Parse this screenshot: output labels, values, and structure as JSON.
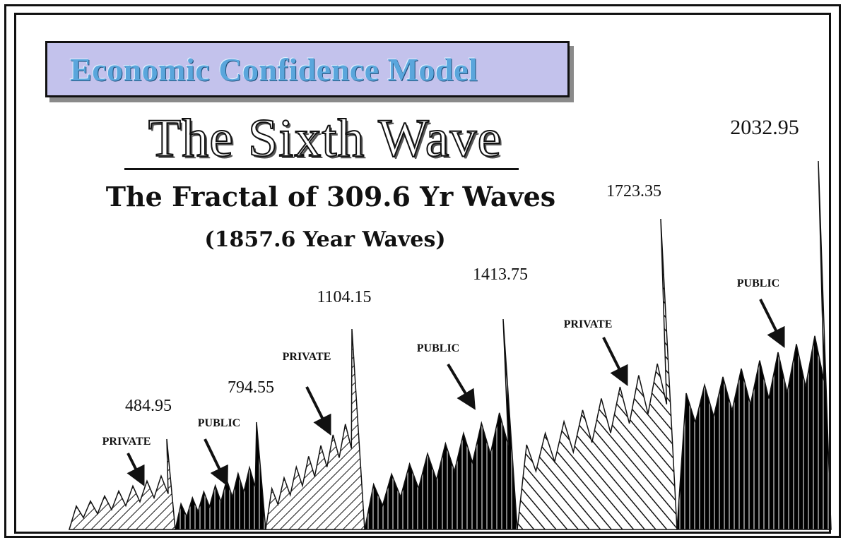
{
  "header": {
    "model_title": "Economic Confidence Model",
    "main_title": "The Sixth Wave",
    "subtitle": "The Fractal of 309.6 Yr Waves",
    "subtitle2": "(1857.6 Year Waves)"
  },
  "chart_data": {
    "type": "area",
    "title": "The Sixth Wave",
    "subtitle": "The Fractal of 309.6 Yr Waves",
    "x_unit": "year",
    "peaks": [
      {
        "year": "484.95",
        "phase": "PRIVATE",
        "style": "light-hatch"
      },
      {
        "year": "794.55",
        "phase": "PUBLIC",
        "style": "dark"
      },
      {
        "year": "1104.15",
        "phase": "PRIVATE",
        "style": "light-hatch"
      },
      {
        "year": "1413.75",
        "phase": "PUBLIC",
        "style": "dark"
      },
      {
        "year": "1723.35",
        "phase": "PRIVATE",
        "style": "hatch"
      },
      {
        "year": "2032.95",
        "phase": "PUBLIC",
        "style": "dark"
      }
    ],
    "colors": {
      "public": "#000000",
      "private_hatch": "#111111",
      "frame": "#111111",
      "model_box": "#c3c2ec",
      "model_text": "#5aa6dc"
    }
  }
}
